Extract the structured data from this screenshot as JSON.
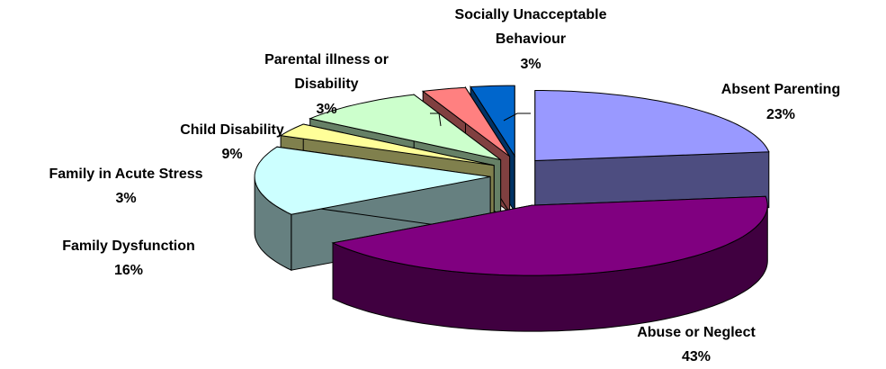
{
  "chart_data": {
    "type": "pie3d",
    "categories": [
      "Absent Parenting",
      "Abuse or Neglect",
      "Family Dysfunction",
      "Family in Acute Stress",
      "Child Disability",
      "Parental illness or Disability",
      "Socially Unacceptable Behaviour"
    ],
    "values": [
      23,
      43,
      16,
      3,
      9,
      3,
      3
    ],
    "value_labels": [
      "23%",
      "43%",
      "16%",
      "3%",
      "9%",
      "3%",
      "3%"
    ],
    "colors": [
      "#9999ff",
      "#800080",
      "#ccffff",
      "#ffff99",
      "#ccffcc",
      "#ff8080",
      "#0066cc"
    ]
  }
}
